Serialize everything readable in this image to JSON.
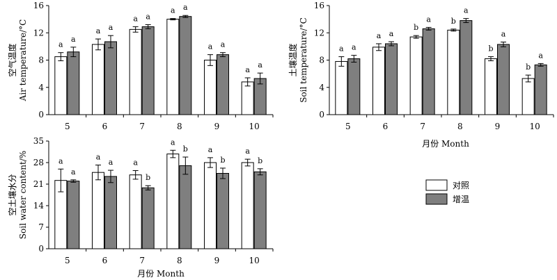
{
  "figure": {
    "xlabel": "月份 Month",
    "legend": {
      "placement": "right-middle",
      "items": [
        {
          "label": "对照",
          "color": "#ffffff"
        },
        {
          "label": "增温",
          "color": "#7f7f7f"
        }
      ]
    }
  },
  "chart_data": [
    {
      "type": "bar",
      "panel": "air-temperature",
      "ylabel_cn": "空气温度",
      "ylabel_en": "Air temperature/°C",
      "xlabel": "",
      "ylim": [
        0,
        16
      ],
      "yticks": [
        0,
        4,
        8,
        12,
        16
      ],
      "categories": [
        "5",
        "6",
        "7",
        "8",
        "9",
        "10"
      ],
      "series": [
        {
          "name": "对照",
          "color": "#ffffff",
          "values": [
            8.5,
            10.3,
            12.5,
            14.0,
            8.0,
            4.8
          ],
          "errors": [
            0.6,
            0.8,
            0.4,
            0.1,
            0.8,
            0.6
          ],
          "letters": [
            "a",
            "a",
            "a",
            "a",
            "a",
            "a"
          ]
        },
        {
          "name": "增温",
          "color": "#7f7f7f",
          "values": [
            9.2,
            10.7,
            12.9,
            14.4,
            8.8,
            5.3
          ],
          "errors": [
            0.7,
            0.9,
            0.3,
            0.15,
            0.3,
            0.8
          ],
          "letters": [
            "a",
            "a",
            "a",
            "a",
            "a",
            "a"
          ]
        }
      ]
    },
    {
      "type": "bar",
      "panel": "soil-temperature",
      "ylabel_cn": "土壤温度",
      "ylabel_en": "Soil temperature/°C",
      "xlabel": "",
      "ylim": [
        0,
        16
      ],
      "yticks": [
        0,
        4,
        8,
        12,
        16
      ],
      "categories": [
        "5",
        "6",
        "7",
        "8",
        "9",
        "10"
      ],
      "series": [
        {
          "name": "对照",
          "color": "#ffffff",
          "values": [
            7.8,
            9.9,
            11.4,
            12.4,
            8.2,
            5.3
          ],
          "errors": [
            0.7,
            0.5,
            0.2,
            0.15,
            0.3,
            0.5
          ],
          "letters": [
            "a",
            "a",
            "b",
            "b",
            "b",
            "b"
          ]
        },
        {
          "name": "增温",
          "color": "#7f7f7f",
          "values": [
            8.2,
            10.4,
            12.6,
            13.8,
            10.3,
            7.3
          ],
          "errors": [
            0.5,
            0.3,
            0.2,
            0.3,
            0.35,
            0.2
          ],
          "letters": [
            "a",
            "a",
            "a",
            "a",
            "a",
            "a"
          ]
        }
      ]
    },
    {
      "type": "bar",
      "panel": "soil-water-content",
      "ylabel_cn": "空土壤水分",
      "ylabel_en": "Soil water content/%",
      "xlabel": "月份 Month",
      "ylim": [
        0,
        35
      ],
      "yticks": [
        0,
        7,
        14,
        21,
        28,
        35
      ],
      "categories": [
        "5",
        "6",
        "7",
        "8",
        "9",
        "10"
      ],
      "series": [
        {
          "name": "对照",
          "color": "#ffffff",
          "values": [
            22.2,
            24.8,
            24.0,
            30.8,
            28.0,
            28.0
          ],
          "errors": [
            3.7,
            2.4,
            1.4,
            1.2,
            1.6,
            1.1
          ],
          "letters": [
            "a",
            "a",
            "a",
            "a",
            "a",
            "a"
          ]
        },
        {
          "name": "增温",
          "color": "#7f7f7f",
          "values": [
            22.0,
            23.5,
            19.8,
            27.0,
            24.5,
            25.0
          ],
          "errors": [
            0.4,
            2.0,
            0.7,
            2.8,
            1.7,
            1.0
          ],
          "letters": [
            "a",
            "a",
            "b",
            "b",
            "b",
            "b"
          ]
        }
      ]
    }
  ]
}
